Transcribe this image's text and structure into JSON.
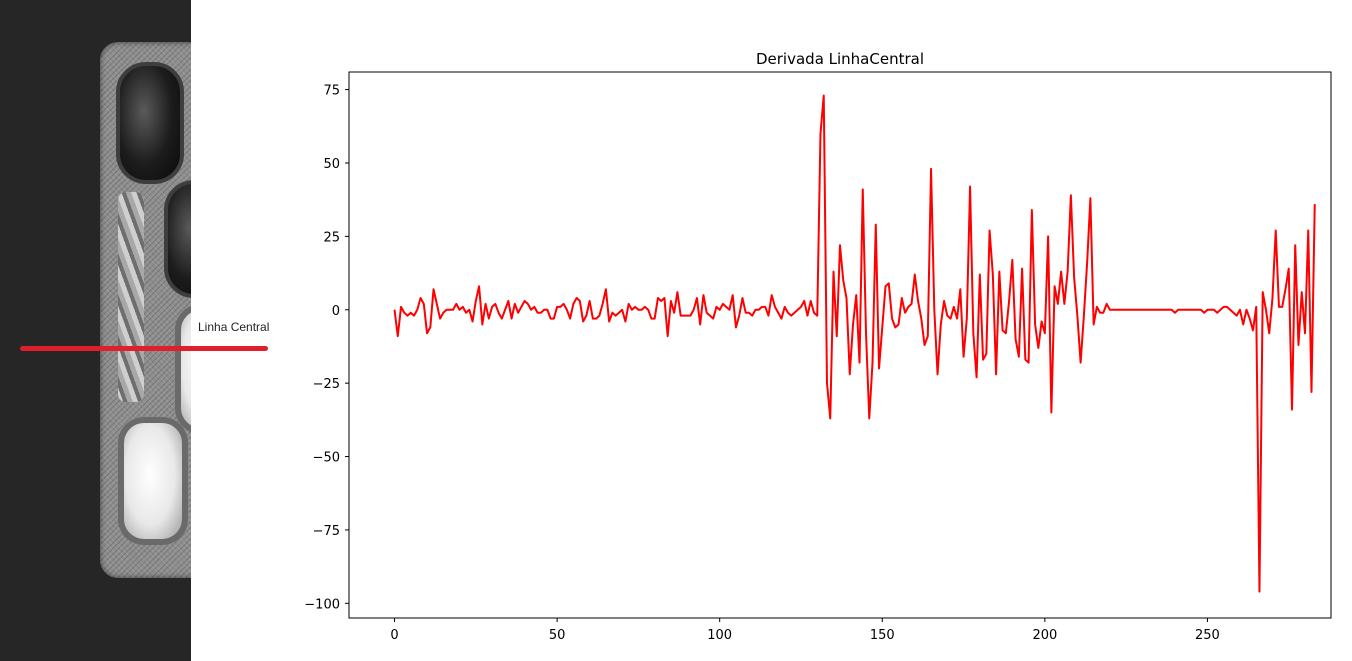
{
  "photo_annotation": {
    "label": "Linha Central",
    "line_color": "#e01f2d"
  },
  "chart_data": {
    "type": "line",
    "title": "Derivada LinhaCentral",
    "xlabel": "",
    "ylabel": "",
    "xlim": [
      -14,
      288
    ],
    "ylim": [
      -105,
      81
    ],
    "xticks": [
      0,
      50,
      100,
      150,
      200,
      250
    ],
    "yticks": [
      75,
      50,
      25,
      0,
      -25,
      -50,
      -75,
      -100
    ],
    "grid": false,
    "series": [
      {
        "color": "#ff0000",
        "x_start": 0,
        "x_step": 1,
        "values": [
          0,
          -9,
          1,
          -1,
          -2,
          -1,
          -2,
          0,
          4,
          2,
          -8,
          -6,
          7,
          2,
          -3,
          -1,
          0,
          0,
          0,
          2,
          0,
          1,
          -1,
          0,
          -4,
          3,
          8,
          -5,
          2,
          -3,
          1,
          2,
          -1,
          -3,
          0,
          3,
          -3,
          2,
          -1,
          1,
          3,
          2,
          0,
          1,
          -1,
          -1,
          0,
          0,
          -3,
          -3,
          1,
          1,
          2,
          0,
          -3,
          2,
          4,
          3,
          -4,
          -2,
          3,
          -3,
          -3,
          -2,
          2,
          7,
          -4,
          -1,
          -2,
          -1,
          0,
          -4,
          2,
          0,
          1,
          0,
          0,
          1,
          0,
          -3,
          -3,
          4,
          3,
          4,
          -9,
          3,
          -1,
          6,
          -2,
          -2,
          -2,
          -2,
          0,
          4,
          -5,
          5,
          -1,
          -2,
          -3,
          1,
          0,
          2,
          1,
          0,
          5,
          -6,
          -2,
          4,
          -1,
          -1,
          -2,
          0,
          0,
          1,
          1,
          -2,
          5,
          1,
          -1,
          -3,
          1,
          -1,
          -2,
          -1,
          0,
          1,
          3,
          -2,
          3,
          -1,
          -2,
          60,
          73,
          -25,
          -37,
          13,
          -9,
          22,
          10,
          4,
          -22,
          -5,
          5,
          -18,
          41,
          -8,
          -37,
          -18,
          29,
          -20,
          -6,
          8,
          9,
          -3,
          -6,
          -5,
          4,
          -1,
          1,
          2,
          12,
          3,
          -3,
          -12,
          -9,
          48,
          0,
          -22,
          -5,
          3,
          -2,
          -3,
          1,
          -3,
          7,
          -16,
          -3,
          42,
          -8,
          -23,
          12,
          -17,
          -15,
          27,
          12,
          -22,
          13,
          -7,
          -8,
          3,
          17,
          -10,
          -16,
          14,
          -17,
          -18,
          34,
          -5,
          -13,
          -4,
          -8,
          25,
          -35,
          8,
          2,
          13,
          2,
          13,
          39,
          11,
          -2,
          -18,
          -2,
          16,
          38,
          -5,
          1,
          -1,
          -1,
          2,
          0,
          0,
          0,
          0,
          0,
          0,
          0,
          0,
          0,
          0,
          0,
          0,
          0,
          0,
          0,
          0,
          0,
          0,
          0,
          0,
          -1,
          0,
          0,
          0,
          0,
          0,
          0,
          0,
          0,
          -1,
          0,
          0,
          0,
          -1,
          0,
          1,
          1,
          0,
          -1,
          -2,
          0,
          -5,
          0,
          -3,
          -7,
          1,
          -96,
          6,
          0,
          -8,
          4,
          27,
          1,
          1,
          7,
          14,
          -34,
          22,
          -12,
          6,
          -8,
          27,
          -28,
          36
        ]
      }
    ]
  }
}
